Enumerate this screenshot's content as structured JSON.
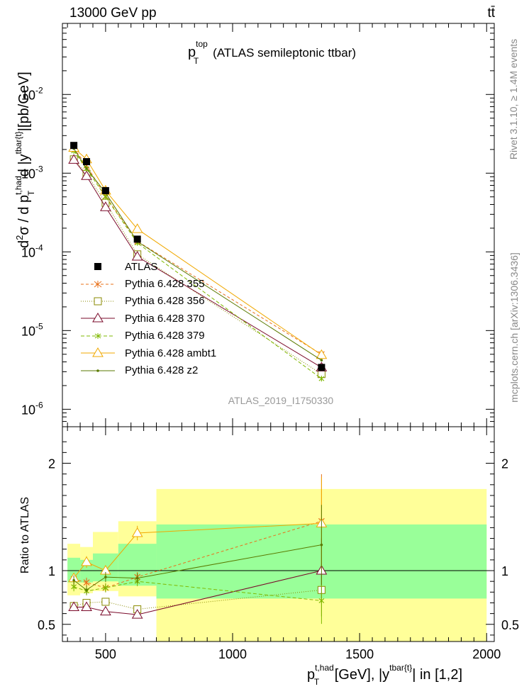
{
  "header": {
    "energy": "13000 GeV pp",
    "process": "tt̄"
  },
  "side_labels": {
    "rivet": "Rivet 3.1.10, ≥ 1.4M events",
    "mcplots": "mcplots.cern.ch [arXiv:1306.3436]"
  },
  "chart_data": [
    {
      "type": "line",
      "panel": "main",
      "title": "p_T^top (ATLAS semileptonic ttbar)",
      "ylabel": "d²σ / d p_T^{t,had} d |y^{tbar{t}}|[pb/GeV]",
      "watermark": "ATLAS_2019_I1750330",
      "yscale": "log",
      "ylim": [
        6e-07,
        0.08
      ],
      "xlim": [
        330,
        2030
      ],
      "y_tick_labels": [
        "10^-6",
        "10^-5",
        "10^-4",
        "10^-3",
        "10^-2"
      ],
      "x": [
        375,
        425,
        500,
        625,
        1350
      ],
      "data": {
        "name": "ATLAS",
        "values": [
          0.00225,
          0.0014,
          0.0006,
          0.000145,
          3.4e-06
        ]
      },
      "series": [
        {
          "name": "Pythia 6.428 355",
          "color": "#e8701a",
          "values": [
            0.00208,
            0.00125,
            0.00051,
            0.000136,
            5e-06
          ]
        },
        {
          "name": "Pythia 6.428 356",
          "color": "#8a8a00",
          "values": [
            0.0015,
            0.00098,
            0.00042,
            9.3e-05,
            2.8e-06
          ]
        },
        {
          "name": "Pythia 6.428 370",
          "color": "#7a0a2a",
          "values": [
            0.00148,
            0.00092,
            0.00037,
            8.7e-05,
            3.4e-06
          ]
        },
        {
          "name": "Pythia 6.428 379",
          "color": "#7fb800",
          "values": [
            0.00192,
            0.00114,
            0.0005,
            0.00013,
            2.45e-06
          ]
        },
        {
          "name": "Pythia 6.428 ambt1",
          "color": "#f0a800",
          "values": [
            0.0021,
            0.0015,
            0.0006,
            0.000195,
            4.9e-06
          ]
        },
        {
          "name": "Pythia 6.428 z2",
          "color": "#5a7a00",
          "values": [
            0.00205,
            0.00115,
            0.00056,
            0.000135,
            4.2e-06
          ]
        }
      ]
    },
    {
      "type": "line",
      "panel": "ratio",
      "ylabel": "Ratio to ATLAS",
      "xlabel": "p_T^{t,had} [GeV], |y^{tbar{t}}| in [1,2]",
      "ylim": [
        0.34,
        2.34
      ],
      "xlim": [
        330,
        2030
      ],
      "y_tick_labels": [
        "0.5",
        "1",
        "2"
      ],
      "x_tick_labels": [
        "500",
        "1000",
        "1500",
        "2000"
      ],
      "x": [
        375,
        425,
        500,
        625,
        1350
      ],
      "bands": {
        "bin_edges": [
          350,
          400,
          450,
          550,
          700,
          2000
        ],
        "yellow": [
          [
            0.77,
            1.25
          ],
          [
            0.79,
            1.22
          ],
          [
            0.81,
            1.36
          ],
          [
            0.76,
            1.46
          ],
          [
            0.34,
            1.76
          ]
        ],
        "green": [
          [
            0.89,
            1.12
          ],
          [
            0.89,
            1.1
          ],
          [
            0.9,
            1.16
          ],
          [
            0.86,
            1.25
          ],
          [
            0.74,
            1.43
          ]
        ]
      },
      "series": [
        {
          "name": "Pythia 6.428 355",
          "color": "#e8701a",
          "values": [
            0.92,
            0.89,
            0.84,
            0.94,
            1.46
          ]
        },
        {
          "name": "Pythia 6.428 356",
          "color": "#8a8a00",
          "values": [
            0.67,
            0.7,
            0.71,
            0.64,
            0.82
          ]
        },
        {
          "name": "Pythia 6.428 370",
          "color": "#7a0a2a",
          "values": [
            0.66,
            0.66,
            0.62,
            0.59,
            1.0
          ]
        },
        {
          "name": "Pythia 6.428 379",
          "color": "#7fb800",
          "values": [
            0.85,
            0.81,
            0.84,
            0.9,
            0.72
          ]
        },
        {
          "name": "Pythia 6.428 ambt1",
          "color": "#f0a800",
          "values": [
            0.93,
            1.08,
            1.0,
            1.35,
            1.44
          ]
        },
        {
          "name": "Pythia 6.428 z2",
          "color": "#5a7a00",
          "values": [
            0.91,
            0.82,
            0.94,
            0.93,
            1.24
          ]
        }
      ]
    }
  ]
}
